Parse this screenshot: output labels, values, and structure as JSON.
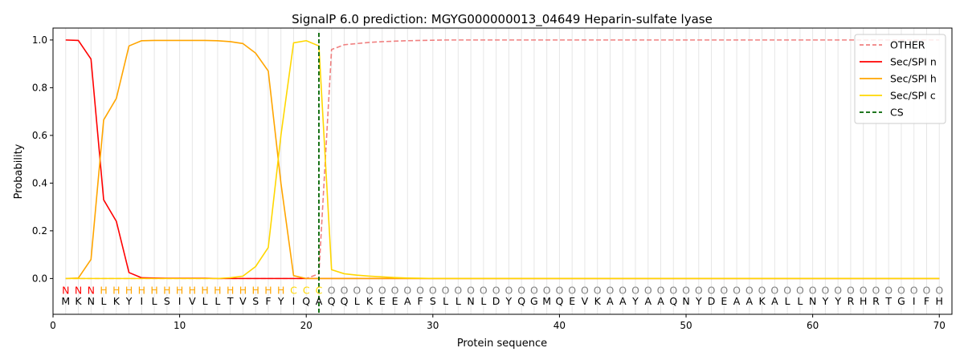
{
  "chart_data": {
    "type": "line",
    "title": "SignalP 6.0 prediction: MGYG000000013_04649 Heparin-sulfate lyase",
    "xlabel": "Protein sequence",
    "ylabel": "Probability",
    "xlim": [
      0,
      71
    ],
    "ylim": [
      -0.15,
      1.05
    ],
    "x_ticks": [
      0,
      10,
      20,
      30,
      40,
      50,
      60,
      70
    ],
    "y_ticks": [
      0.0,
      0.2,
      0.4,
      0.6,
      0.8,
      1.0
    ],
    "grid": "vertical lines at each residue",
    "legend_position": "top-right",
    "sequence": [
      "M",
      "K",
      "N",
      "L",
      "K",
      "Y",
      "I",
      "L",
      "S",
      "I",
      "V",
      "L",
      "L",
      "T",
      "V",
      "S",
      "F",
      "Y",
      "I",
      "Q",
      "A",
      "Q",
      "Q",
      "L",
      "K",
      "E",
      "E",
      "A",
      "F",
      "S",
      "L",
      "L",
      "N",
      "L",
      "D",
      "Y",
      "Q",
      "G",
      "M",
      "Q",
      "E",
      "V",
      "K",
      "A",
      "A",
      "Y",
      "A",
      "A",
      "Q",
      "N",
      "Y",
      "D",
      "E",
      "A",
      "A",
      "K",
      "A",
      "L",
      "L",
      "N",
      "Y",
      "Y",
      "R",
      "H",
      "R",
      "T",
      "G",
      "I",
      "F",
      "H"
    ],
    "labels": [
      "N",
      "N",
      "N",
      "H",
      "H",
      "H",
      "H",
      "H",
      "H",
      "H",
      "H",
      "H",
      "H",
      "H",
      "H",
      "H",
      "H",
      "H",
      "C",
      "C",
      "C",
      "O",
      "O",
      "O",
      "O",
      "O",
      "O",
      "O",
      "O",
      "O",
      "O",
      "O",
      "O",
      "O",
      "O",
      "O",
      "O",
      "O",
      "O",
      "O",
      "O",
      "O",
      "O",
      "O",
      "O",
      "O",
      "O",
      "O",
      "O",
      "O",
      "O",
      "O",
      "O",
      "O",
      "O",
      "O",
      "O",
      "O",
      "O",
      "O",
      "O",
      "O",
      "O",
      "O",
      "O",
      "O",
      "O",
      "O",
      "O",
      "O"
    ],
    "label_colors": {
      "N": "#ff0000",
      "H": "#ffa500",
      "C": "#ffd700",
      "O": "#808080"
    },
    "cs_position": 21,
    "series": [
      {
        "name": "OTHER",
        "color": "#f08080",
        "dash": true,
        "values": [
          0.0,
          0.0,
          0.0,
          0.0,
          0.0,
          0.0,
          0.0,
          0.0,
          0.0,
          0.0,
          0.0,
          0.0,
          0.0,
          0.0,
          0.0,
          0.0,
          0.0,
          0.0,
          0.0,
          0.0,
          0.02,
          0.96,
          0.98,
          0.985,
          0.99,
          0.993,
          0.995,
          0.997,
          0.998,
          0.999,
          1.0,
          1.0,
          1.0,
          1.0,
          1.0,
          1.0,
          1.0,
          1.0,
          1.0,
          1.0,
          1.0,
          1.0,
          1.0,
          1.0,
          1.0,
          1.0,
          1.0,
          1.0,
          1.0,
          1.0,
          1.0,
          1.0,
          1.0,
          1.0,
          1.0,
          1.0,
          1.0,
          1.0,
          1.0,
          1.0,
          1.0,
          1.0,
          1.0,
          1.0,
          1.0,
          1.0,
          1.0,
          1.0,
          1.0,
          1.0
        ]
      },
      {
        "name": "Sec/SPI n",
        "color": "#ff0000",
        "dash": false,
        "values": [
          1.0,
          0.998,
          0.92,
          0.33,
          0.24,
          0.025,
          0.003,
          0.002,
          0.001,
          0.001,
          0.001,
          0.001,
          0.0,
          0.0,
          0.0,
          0.0,
          0.0,
          0.0,
          0.0,
          0.0,
          0.0,
          0.0,
          0.0,
          0.0,
          0.0,
          0.0,
          0.0,
          0.0,
          0.0,
          0.0,
          0.0,
          0.0,
          0.0,
          0.0,
          0.0,
          0.0,
          0.0,
          0.0,
          0.0,
          0.0,
          0.0,
          0.0,
          0.0,
          0.0,
          0.0,
          0.0,
          0.0,
          0.0,
          0.0,
          0.0,
          0.0,
          0.0,
          0.0,
          0.0,
          0.0,
          0.0,
          0.0,
          0.0,
          0.0,
          0.0,
          0.0,
          0.0,
          0.0,
          0.0,
          0.0,
          0.0,
          0.0,
          0.0,
          0.0,
          0.0
        ]
      },
      {
        "name": "Sec/SPI h",
        "color": "#ffa500",
        "dash": false,
        "values": [
          0.0,
          0.002,
          0.08,
          0.665,
          0.755,
          0.975,
          0.997,
          0.998,
          0.998,
          0.998,
          0.998,
          0.998,
          0.997,
          0.993,
          0.985,
          0.945,
          0.87,
          0.4,
          0.012,
          0.0,
          0.0,
          0.0,
          0.0,
          0.0,
          0.0,
          0.0,
          0.0,
          0.0,
          0.0,
          0.0,
          0.0,
          0.0,
          0.0,
          0.0,
          0.0,
          0.0,
          0.0,
          0.0,
          0.0,
          0.0,
          0.0,
          0.0,
          0.0,
          0.0,
          0.0,
          0.0,
          0.0,
          0.0,
          0.0,
          0.0,
          0.0,
          0.0,
          0.0,
          0.0,
          0.0,
          0.0,
          0.0,
          0.0,
          0.0,
          0.0,
          0.0,
          0.0,
          0.0,
          0.0,
          0.0,
          0.0,
          0.0,
          0.0,
          0.0,
          0.0
        ]
      },
      {
        "name": "Sec/SPI c",
        "color": "#ffd700",
        "dash": false,
        "values": [
          0.0,
          0.0,
          0.0,
          0.0,
          0.0,
          0.0,
          0.0,
          0.0,
          0.0,
          0.0,
          0.0,
          0.0,
          0.0,
          0.003,
          0.01,
          0.05,
          0.13,
          0.6,
          0.988,
          0.997,
          0.975,
          0.037,
          0.02,
          0.014,
          0.01,
          0.007,
          0.004,
          0.002,
          0.001,
          0.0,
          0.0,
          0.0,
          0.0,
          0.0,
          0.0,
          0.0,
          0.0,
          0.0,
          0.0,
          0.0,
          0.0,
          0.0,
          0.0,
          0.0,
          0.0,
          0.0,
          0.0,
          0.0,
          0.0,
          0.0,
          0.0,
          0.0,
          0.0,
          0.0,
          0.0,
          0.0,
          0.0,
          0.0,
          0.0,
          0.0,
          0.0,
          0.0,
          0.0,
          0.0,
          0.0,
          0.0,
          0.0,
          0.0,
          0.0,
          0.0
        ]
      }
    ],
    "legend": [
      {
        "name": "OTHER",
        "color": "#f08080",
        "dash": true
      },
      {
        "name": "Sec/SPI n",
        "color": "#ff0000",
        "dash": false
      },
      {
        "name": "Sec/SPI h",
        "color": "#ffa500",
        "dash": false
      },
      {
        "name": "Sec/SPI c",
        "color": "#ffd700",
        "dash": false
      },
      {
        "name": "CS",
        "color": "#006400",
        "dash": true
      }
    ]
  }
}
